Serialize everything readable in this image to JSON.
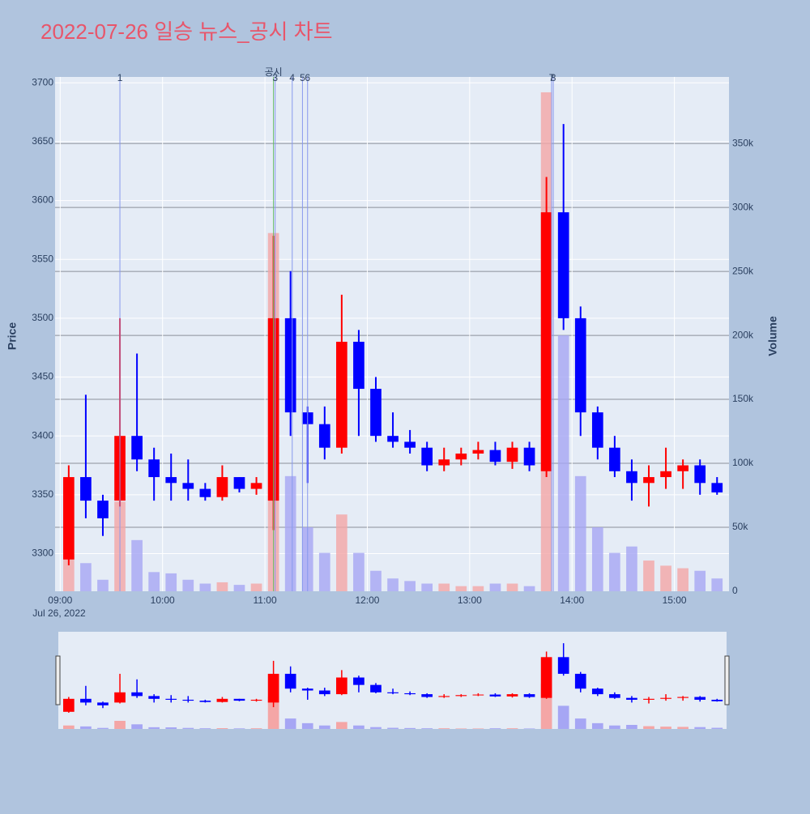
{
  "chart_data": {
    "type": "candlestick",
    "title": "2022-07-26 일승 뉴스_공시 차트",
    "x": [
      "09:00",
      "09:10",
      "09:20",
      "09:30",
      "09:40",
      "09:50",
      "10:00",
      "10:10",
      "10:20",
      "10:30",
      "10:40",
      "10:50",
      "11:00",
      "11:10",
      "11:20",
      "11:30",
      "11:40",
      "11:50",
      "12:00",
      "12:10",
      "12:20",
      "12:30",
      "12:40",
      "12:50",
      "13:00",
      "13:10",
      "13:20",
      "13:30",
      "13:40",
      "13:50",
      "14:00",
      "14:10",
      "14:20",
      "14:30",
      "14:40",
      "14:50",
      "15:00",
      "15:10",
      "15:20"
    ],
    "open": [
      3295,
      3365,
      3345,
      3345,
      3400,
      3380,
      3365,
      3360,
      3355,
      3348,
      3365,
      3355,
      3345,
      3500,
      3420,
      3410,
      3390,
      3480,
      3440,
      3400,
      3395,
      3390,
      3375,
      3380,
      3385,
      3388,
      3378,
      3390,
      3370,
      3590,
      3500,
      3420,
      3390,
      3370,
      3360,
      3365,
      3370,
      3375,
      3360
    ],
    "high": [
      3375,
      3435,
      3350,
      3500,
      3470,
      3390,
      3385,
      3380,
      3360,
      3375,
      3365,
      3365,
      3570,
      3540,
      3425,
      3425,
      3520,
      3490,
      3450,
      3420,
      3405,
      3395,
      3390,
      3390,
      3395,
      3395,
      3395,
      3395,
      3620,
      3665,
      3510,
      3425,
      3400,
      3380,
      3375,
      3390,
      3380,
      3380,
      3365
    ],
    "low": [
      3290,
      3330,
      3315,
      3340,
      3370,
      3345,
      3345,
      3345,
      3345,
      3345,
      3352,
      3350,
      3320,
      3400,
      3360,
      3380,
      3385,
      3400,
      3395,
      3390,
      3385,
      3370,
      3370,
      3375,
      3380,
      3375,
      3372,
      3370,
      3365,
      3490,
      3400,
      3380,
      3365,
      3345,
      3340,
      3355,
      3355,
      3350,
      3350
    ],
    "close": [
      3365,
      3345,
      3330,
      3400,
      3380,
      3365,
      3360,
      3355,
      3348,
      3365,
      3355,
      3360,
      3500,
      3420,
      3410,
      3390,
      3480,
      3440,
      3400,
      3395,
      3390,
      3375,
      3380,
      3385,
      3388,
      3378,
      3390,
      3375,
      3590,
      3500,
      3420,
      3390,
      3370,
      3360,
      3365,
      3370,
      3375,
      3360,
      3352
    ],
    "volume": [
      30000,
      22000,
      9000,
      70000,
      40000,
      15000,
      14000,
      9000,
      6000,
      7000,
      5000,
      6000,
      280000,
      90000,
      50000,
      30000,
      60000,
      30000,
      16000,
      10000,
      8000,
      6000,
      6000,
      4000,
      4000,
      6000,
      6000,
      4000,
      390000,
      200000,
      90000,
      50000,
      30000,
      35000,
      24000,
      20000,
      18000,
      16000,
      10000
    ],
    "up_color": "#ff0000",
    "down_color": "#0000ff",
    "volume_up_color": "#f4a6a6",
    "volume_down_color": "#a6a6f4",
    "xlim": [
      "08:57",
      "15:32"
    ],
    "xticks": [
      "09:00",
      "10:00",
      "11:00",
      "12:00",
      "13:00",
      "14:00",
      "15:00"
    ],
    "x_date_label": "Jul 26, 2022",
    "ylim": [
      3268,
      3705
    ],
    "yticks": [
      3300,
      3350,
      3400,
      3450,
      3500,
      3550,
      3600,
      3650,
      3700
    ],
    "y2lim": [
      0,
      402000
    ],
    "y2ticks": [
      0,
      {
        "value": 50000,
        "label": "50k"
      },
      {
        "value": 100000,
        "label": "100k"
      },
      {
        "value": 150000,
        "label": "150k"
      },
      {
        "value": 200000,
        "label": "200k"
      },
      {
        "value": 250000,
        "label": "250k"
      },
      {
        "value": 300000,
        "label": "300k"
      },
      {
        "value": 350000,
        "label": "350k"
      }
    ],
    "y_label": "Price",
    "y2_label": "Volume",
    "annotations": [
      {
        "x": "09:35",
        "label": "1",
        "color": "#8899ee"
      },
      {
        "x": "11:05",
        "label": "공시",
        "color": "#66bb66"
      },
      {
        "x": "11:06",
        "label": "3",
        "color": "#8899ee"
      },
      {
        "x": "11:16",
        "label": "4",
        "color": "#8899ee"
      },
      {
        "x": "11:22",
        "label": "5",
        "color": "#8899ee"
      },
      {
        "x": "11:25",
        "label": "6",
        "color": "#8899ee"
      },
      {
        "x": "13:48",
        "label": "7",
        "color": "#8899ee"
      },
      {
        "x": "13:49",
        "label": "8",
        "color": "#8899ee"
      }
    ]
  }
}
